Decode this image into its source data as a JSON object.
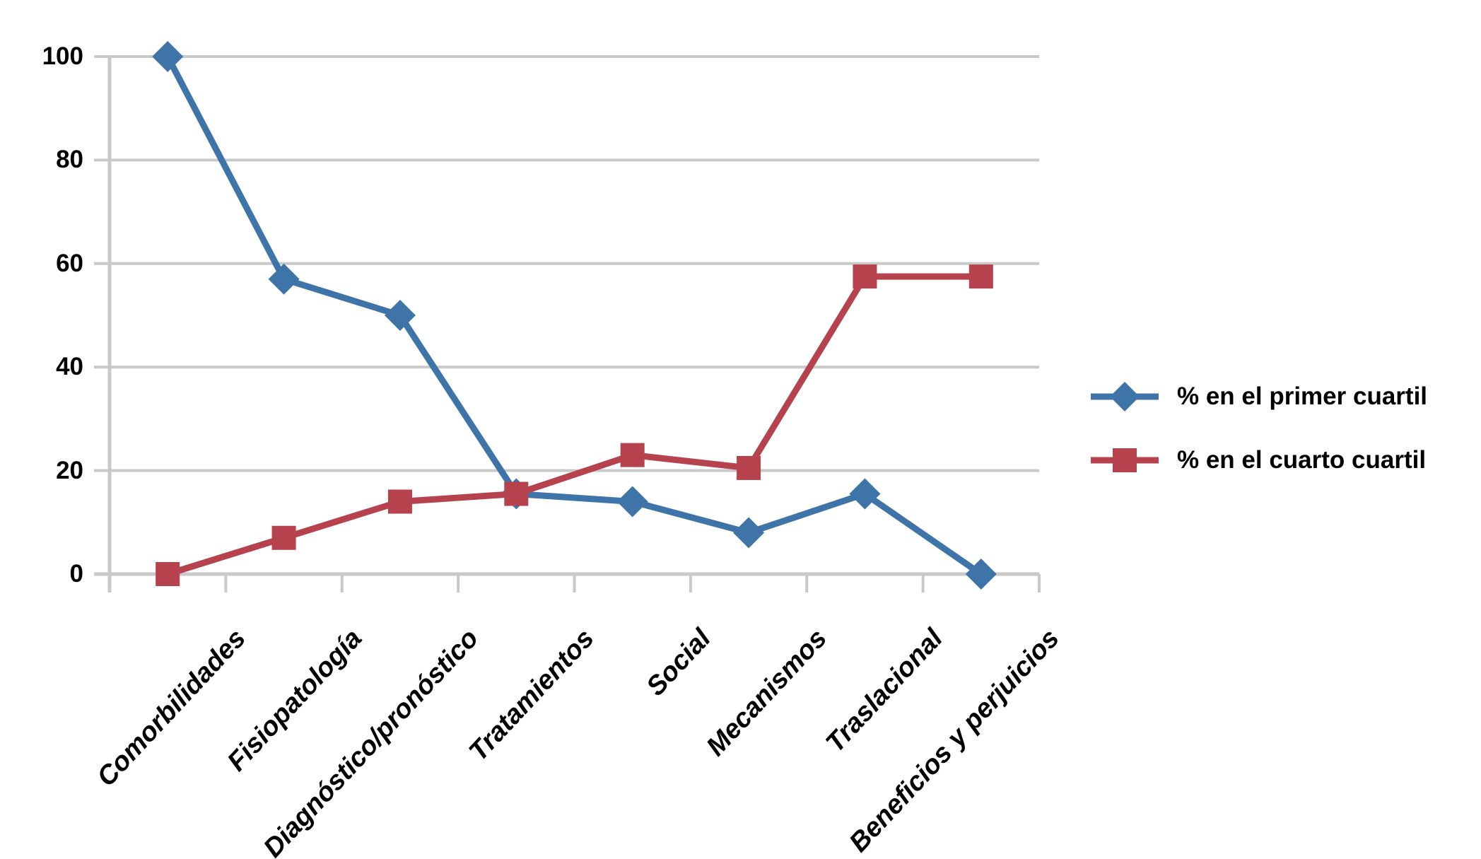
{
  "chart_data": {
    "type": "line",
    "title": "",
    "xlabel": "",
    "ylabel": "",
    "categories": [
      "Comorbilidades",
      "Fisiopatología",
      "Diagnóstico/pronóstico",
      "Tratamientos",
      "Social",
      "Mecanismos",
      "Traslacional",
      "Beneficios y perjuicios"
    ],
    "series": [
      {
        "name": "% en el primer cuartil",
        "marker": "diamond",
        "color": "#3E74A8",
        "values": [
          100,
          57,
          50,
          15.5,
          14,
          8,
          15.5,
          0
        ]
      },
      {
        "name": "% en el cuarto cuartil",
        "marker": "square",
        "color": "#B6424E",
        "values": [
          0,
          7,
          14,
          15.5,
          23,
          20.5,
          57.5,
          57.5
        ]
      }
    ],
    "yticks": [
      "0",
      "20",
      "40",
      "60",
      "80",
      "100"
    ],
    "ylim": [
      0,
      100
    ],
    "grid": "horizontal",
    "gridline_color": "#C9C9C9",
    "axis_color": "#C9C9C9",
    "background": "#FFFFFF",
    "label_color": "#000000",
    "legend_position": "right"
  }
}
